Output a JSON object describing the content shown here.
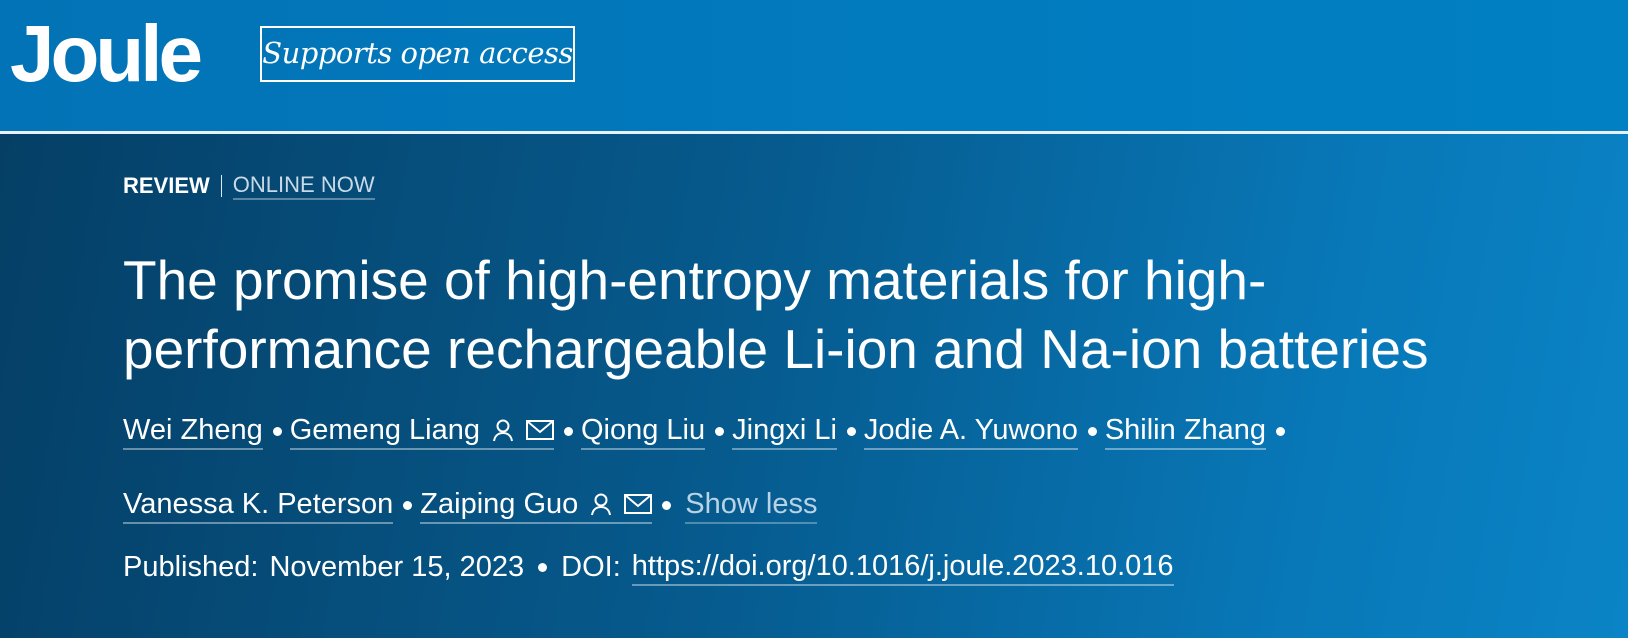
{
  "header": {
    "logo": "Joule",
    "badge": "Supports open access"
  },
  "article": {
    "type": "REVIEW",
    "status": "ONLINE NOW",
    "title": "The promise of high-entropy materials for high-performance rechargeable Li-ion and Na-ion batteries",
    "authors": [
      "Wei Zheng",
      "Gemeng Liang",
      "Qiong Liu",
      "Jingxi Li",
      "Jodie A. Yuwono",
      "Shilin Zhang",
      "Vanessa K. Peterson",
      "Zaiping Guo"
    ],
    "toggle": "Show less",
    "published_label": "Published:",
    "published_date": "November 15, 2023",
    "doi_label": "DOI:",
    "doi": "https://doi.org/10.1016/j.joule.2023.10.016"
  }
}
